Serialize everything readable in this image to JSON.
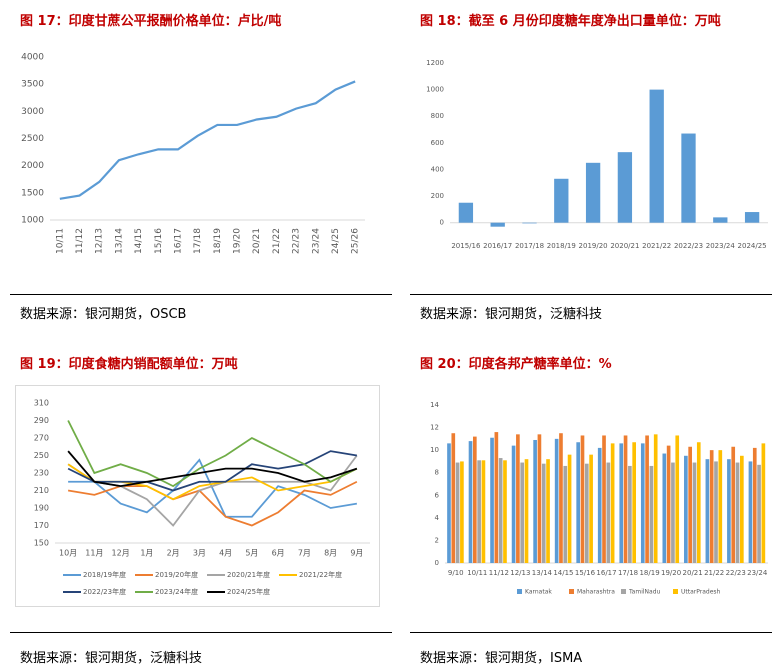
{
  "chart_data": [
    {
      "type": "line",
      "title": "图 17：印度甘蔗公平报酬价格单位：卢比/吨",
      "source": "数据来源：银河期货，OSCB",
      "categories": [
        "10/11",
        "11/12",
        "12/13",
        "13/14",
        "14/15",
        "15/16",
        "16/17",
        "17/18",
        "18/19",
        "19/20",
        "20/21",
        "21/22",
        "22/23",
        "23/24",
        "24/25",
        "25/26"
      ],
      "values": [
        1390,
        1450,
        1700,
        2100,
        2210,
        2300,
        2300,
        2550,
        2750,
        2750,
        2850,
        2900,
        3050,
        3150,
        3400,
        3550
      ],
      "color": "#5b9bd5",
      "ylim": [
        1000,
        4000
      ],
      "yticks": [
        1000,
        1500,
        2000,
        2500,
        3000,
        3500,
        4000
      ]
    },
    {
      "type": "bar",
      "title": "图 18：截至 6 月份印度糖年度净出口量单位：万吨",
      "source": "数据来源：银河期货，泛糖科技",
      "categories": [
        "2015/16",
        "2016/17",
        "2017/18",
        "2018/19",
        "2019/20",
        "2020/21",
        "2021/22",
        "2022/23",
        "2023/24",
        "2024/25"
      ],
      "values": [
        150,
        -30,
        -5,
        330,
        450,
        530,
        1000,
        670,
        40,
        80
      ],
      "color": "#5b9bd5",
      "ylim": [
        -100,
        1200
      ],
      "yticks": [
        0,
        200,
        400,
        600,
        800,
        1000,
        1200
      ]
    },
    {
      "type": "line",
      "title": "图 19：印度食糖内销配额单位：万吨",
      "source": "数据来源：银河期货，泛糖科技",
      "categories": [
        "10月",
        "11月",
        "12月",
        "1月",
        "2月",
        "3月",
        "4月",
        "5月",
        "6月",
        "7月",
        "8月",
        "9月"
      ],
      "series": [
        {
          "name": "2018/19年度",
          "color": "#5b9bd5",
          "values": [
            220,
            220,
            195,
            185,
            210,
            245,
            180,
            180,
            215,
            205,
            190,
            195
          ]
        },
        {
          "name": "2019/20年度",
          "color": "#ed7d31",
          "values": [
            210,
            205,
            215,
            215,
            200,
            210,
            180,
            170,
            185,
            210,
            205,
            220
          ]
        },
        {
          "name": "2020/21年度",
          "color": "#a5a5a5",
          "values": [
            240,
            220,
            215,
            200,
            170,
            210,
            220,
            220,
            220,
            220,
            210,
            250
          ]
        },
        {
          "name": "2021/22年度",
          "color": "#ffc000",
          "values": [
            240,
            220,
            220,
            215,
            200,
            215,
            220,
            225,
            210,
            215,
            220,
            235
          ]
        },
        {
          "name": "2022/23年度",
          "color": "#264478",
          "values": [
            235,
            220,
            220,
            220,
            210,
            220,
            220,
            240,
            235,
            240,
            255,
            250
          ]
        },
        {
          "name": "2023/24年度",
          "color": "#70ad47",
          "values": [
            290,
            230,
            240,
            230,
            215,
            235,
            250,
            270,
            255,
            240,
            220,
            235
          ]
        },
        {
          "name": "2024/25年度",
          "color": "#000000",
          "values": [
            255,
            220,
            215,
            220,
            225,
            230,
            235,
            235,
            230,
            220,
            225,
            235
          ]
        }
      ],
      "ylim": [
        150,
        310
      ],
      "yticks": [
        150,
        170,
        190,
        210,
        230,
        250,
        270,
        290,
        310
      ],
      "legend": "bottom"
    },
    {
      "type": "bar",
      "title": "图 20：印度各邦产糖率单位：%",
      "source": "数据来源：银河期货，ISMA",
      "categories": [
        "9/10",
        "10/11",
        "11/12",
        "12/13",
        "13/14",
        "14/15",
        "15/16",
        "16/17",
        "17/18",
        "18/19",
        "19/20",
        "20/21",
        "21/22",
        "22/23",
        "23/24"
      ],
      "series": [
        {
          "name": "Karnatak",
          "color": "#5b9bd5",
          "values": [
            10.6,
            10.8,
            11.1,
            10.4,
            10.9,
            11.0,
            10.7,
            10.2,
            10.6,
            10.6,
            9.7,
            9.5,
            9.2,
            9.2,
            9.0
          ]
        },
        {
          "name": "Maharashtra",
          "color": "#ed7d31",
          "values": [
            11.5,
            11.2,
            11.6,
            11.4,
            11.4,
            11.5,
            11.3,
            11.3,
            11.3,
            11.3,
            10.4,
            10.3,
            10.0,
            10.3,
            10.2
          ]
        },
        {
          "name": "TamilNadu",
          "color": "#a5a5a5",
          "values": [
            8.9,
            9.1,
            9.3,
            8.9,
            8.8,
            8.6,
            8.8,
            8.9,
            8.6,
            8.6,
            8.9,
            8.9,
            9.0,
            8.9,
            8.7
          ]
        },
        {
          "name": "UttarPradesh",
          "color": "#ffc000",
          "values": [
            9.0,
            9.1,
            9.1,
            9.2,
            9.2,
            9.6,
            9.6,
            10.6,
            10.7,
            11.4,
            11.3,
            10.7,
            10.0,
            9.5,
            10.6
          ]
        }
      ],
      "ylim": [
        0,
        14
      ],
      "yticks": [
        0,
        2,
        4,
        6,
        8,
        10,
        12,
        14
      ],
      "legend": "bottom"
    }
  ]
}
